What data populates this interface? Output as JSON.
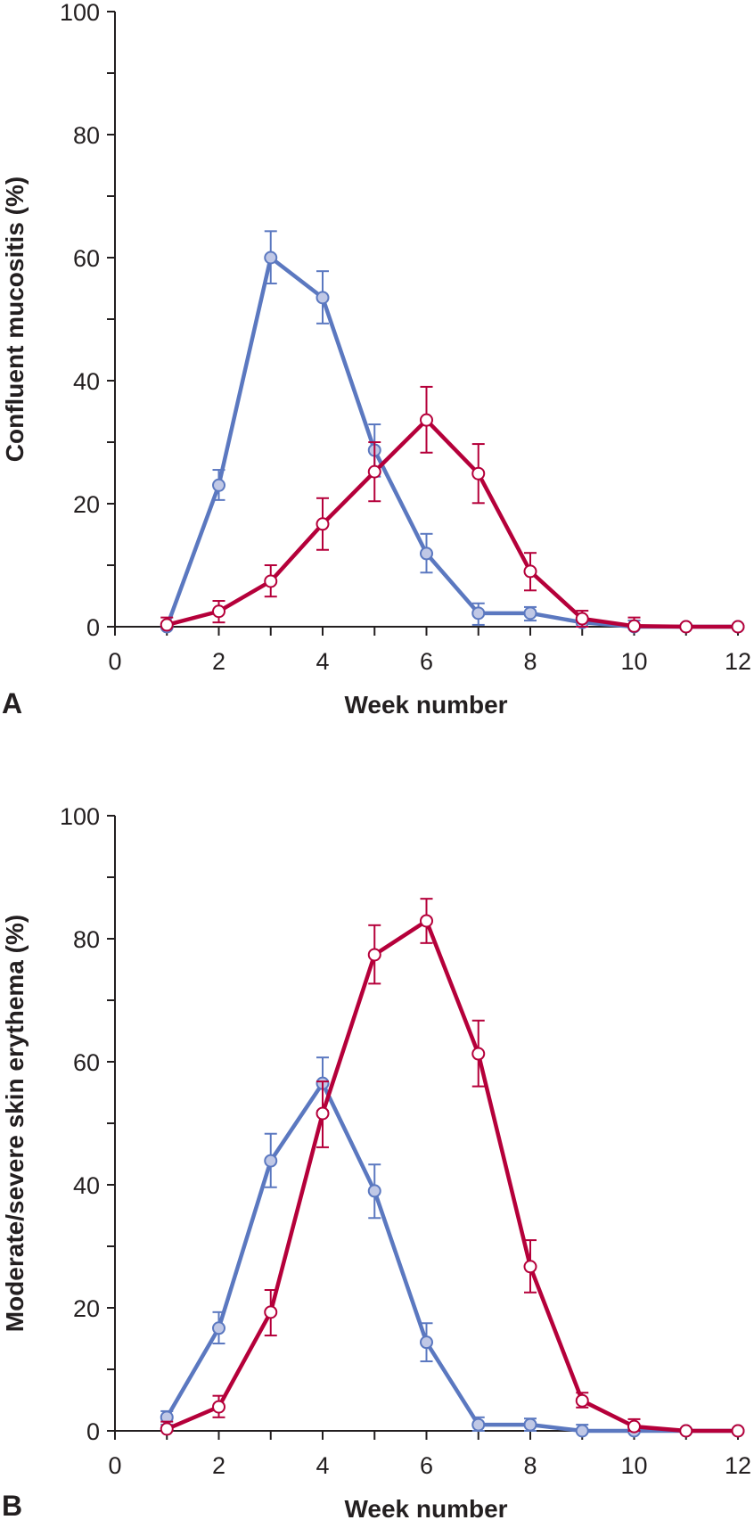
{
  "chart_data": [
    {
      "panel_label": "A",
      "type": "line",
      "title": "",
      "xlabel": "Week number",
      "ylabel": "Confluent mucositis (%)",
      "xlim": [
        0,
        12
      ],
      "ylim": [
        0,
        100
      ],
      "xticks": [
        0,
        2,
        4,
        6,
        8,
        10,
        12
      ],
      "yticks": [
        0,
        20,
        40,
        60,
        80,
        100
      ],
      "grid": false,
      "legend": "none",
      "series": [
        {
          "name": "blue-filled",
          "color": "#5b78c0",
          "fill": "#c0c8e6",
          "marker": "filled-circle",
          "x": [
            1,
            2,
            3,
            4,
            5,
            6,
            7,
            8,
            9,
            10,
            11,
            12
          ],
          "values": [
            0,
            23,
            60,
            53.5,
            28.7,
            11.9,
            2.2,
            2.2,
            0.7,
            0,
            0,
            0
          ],
          "err_low": [
            1.5,
            20.6,
            55.8,
            49.3,
            24.4,
            8.8,
            0.3,
            1,
            0,
            0,
            0,
            0
          ],
          "err_high": [
            1.5,
            25.5,
            64.3,
            57.8,
            32.9,
            15.1,
            3.8,
            3.2,
            1.5,
            1,
            0,
            0
          ]
        },
        {
          "name": "red-open",
          "color": "#b5003a",
          "fill": "#ffffff",
          "marker": "open-circle",
          "x": [
            1,
            2,
            3,
            4,
            5,
            6,
            7,
            8,
            9,
            10,
            11,
            12
          ],
          "values": [
            0.3,
            2.5,
            7.4,
            16.7,
            25.2,
            33.6,
            24.9,
            9,
            1.3,
            0.1,
            0,
            0
          ],
          "err_low": [
            0,
            0.7,
            4.9,
            12.5,
            20.4,
            28.3,
            20.1,
            5.9,
            0,
            0,
            0,
            0
          ],
          "err_high": [
            1.5,
            4.2,
            10,
            20.9,
            30,
            39,
            29.7,
            12,
            2.6,
            1.5,
            0,
            0
          ]
        }
      ]
    },
    {
      "panel_label": "B",
      "type": "line",
      "title": "",
      "xlabel": "Week number",
      "ylabel": "Moderate/severe skin erythema (%)",
      "xlim": [
        0,
        12
      ],
      "ylim": [
        0,
        100
      ],
      "xticks": [
        0,
        2,
        4,
        6,
        8,
        10,
        12
      ],
      "yticks": [
        0,
        20,
        40,
        60,
        80,
        100
      ],
      "grid": false,
      "legend": "none",
      "series": [
        {
          "name": "blue-filled",
          "color": "#5b78c0",
          "fill": "#c0c8e6",
          "marker": "filled-circle",
          "x": [
            1,
            2,
            3,
            4,
            5,
            6,
            7,
            8,
            9,
            10,
            11,
            12
          ],
          "values": [
            2.2,
            16.7,
            43.9,
            56.5,
            39,
            14.4,
            1,
            1,
            0,
            0,
            0,
            0
          ],
          "err_low": [
            1,
            14.2,
            39.6,
            52,
            34.6,
            11.3,
            0,
            0,
            0,
            0,
            0,
            0
          ],
          "err_high": [
            3.2,
            19.3,
            48.3,
            60.7,
            43.3,
            17.5,
            2.2,
            2,
            1,
            0,
            0,
            0
          ]
        },
        {
          "name": "red-open",
          "color": "#b5003a",
          "fill": "#ffffff",
          "marker": "open-circle",
          "x": [
            1,
            2,
            3,
            4,
            5,
            6,
            7,
            8,
            9,
            10,
            11,
            12
          ],
          "values": [
            0.3,
            3.9,
            19.3,
            51.6,
            77.4,
            82.9,
            61.3,
            26.7,
            4.9,
            0.7,
            0,
            0
          ],
          "err_low": [
            0,
            2.2,
            15.5,
            46.1,
            72.7,
            79.3,
            56,
            22.5,
            3.8,
            0,
            0,
            0
          ],
          "err_high": [
            1.5,
            5.7,
            22.9,
            56.8,
            82.2,
            86.5,
            66.7,
            31,
            6.2,
            1.9,
            0,
            0
          ]
        }
      ]
    }
  ]
}
